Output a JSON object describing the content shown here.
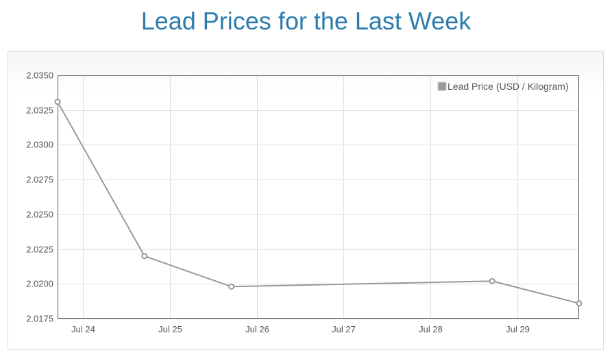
{
  "page": {
    "title": "Lead Prices for the Last Week"
  },
  "chart_data": {
    "type": "line",
    "title": "Lead Prices for the Last Week",
    "xlabel": "",
    "ylabel": "",
    "x_ticks": [
      "Jul 24",
      "Jul 25",
      "Jul 26",
      "Jul 27",
      "Jul 28",
      "Jul 29"
    ],
    "x_range": [
      "2016-07-23 17:00",
      "2016-07-29 17:00"
    ],
    "y_ticks": [
      "2.0350",
      "2.0325",
      "2.0300",
      "2.0275",
      "2.0250",
      "2.0225",
      "2.0200",
      "2.0175"
    ],
    "ylim": [
      2.0175,
      2.035
    ],
    "grid": true,
    "legend_position": "top-right",
    "series": [
      {
        "name": "Lead Price (USD / Kilogram)",
        "color": "#999999",
        "points": [
          {
            "x": "2016-07-23 17:00",
            "y": 2.0331
          },
          {
            "x": "2016-07-24 17:00",
            "y": 2.022
          },
          {
            "x": "2016-07-25 17:00",
            "y": 2.0198
          },
          {
            "x": "2016-07-28 17:00",
            "y": 2.0202
          },
          {
            "x": "2016-07-29 17:00",
            "y": 2.0186
          }
        ]
      }
    ]
  }
}
